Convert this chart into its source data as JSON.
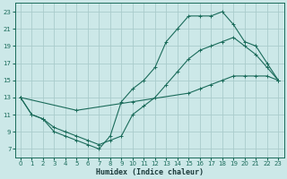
{
  "xlabel": "Humidex (Indice chaleur)",
  "xlim": [
    -0.5,
    23.5
  ],
  "ylim": [
    6,
    24
  ],
  "xticks": [
    0,
    1,
    2,
    3,
    4,
    5,
    6,
    7,
    8,
    9,
    10,
    11,
    12,
    13,
    14,
    15,
    16,
    17,
    18,
    19,
    20,
    21,
    22,
    23
  ],
  "yticks": [
    7,
    9,
    11,
    13,
    15,
    17,
    19,
    21,
    23
  ],
  "bg_color": "#cce8e8",
  "grid_color": "#aacccc",
  "line_color": "#1a6b5a",
  "line1_x": [
    0,
    1,
    2,
    3,
    4,
    5,
    6,
    7,
    8,
    9,
    10,
    11,
    12,
    13,
    14,
    15,
    16,
    17,
    18,
    19,
    20,
    21,
    22,
    23
  ],
  "line1_y": [
    13,
    11,
    10.5,
    9,
    8.5,
    8,
    7.5,
    7,
    8.5,
    12.5,
    14,
    15,
    16.5,
    19.5,
    21,
    22.5,
    22.5,
    22.5,
    23,
    21.5,
    19.5,
    19,
    17,
    15
  ],
  "line2_x": [
    0,
    1,
    2,
    3,
    4,
    5,
    6,
    7,
    8,
    9,
    10,
    11,
    12,
    13,
    14,
    15,
    16,
    17,
    18,
    19,
    20,
    21,
    22,
    23
  ],
  "line2_y": [
    13,
    11,
    10.5,
    9.5,
    9,
    8.5,
    8,
    7.5,
    8,
    8.5,
    11,
    12,
    13,
    14.5,
    16,
    17.5,
    18.5,
    19,
    19.5,
    20,
    19,
    18,
    16.5,
    15
  ],
  "line3_x": [
    0,
    5,
    10,
    15,
    16,
    17,
    18,
    19,
    20,
    21,
    22,
    23
  ],
  "line3_y": [
    13,
    11.5,
    12.5,
    13.5,
    14,
    14.5,
    15,
    15.5,
    15.5,
    15.5,
    15.5,
    15
  ],
  "linewidth": 0.8,
  "markersize": 3.5
}
